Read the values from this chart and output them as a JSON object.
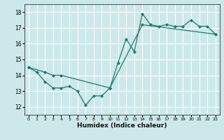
{
  "title": "",
  "xlabel": "Humidex (Indice chaleur)",
  "ylabel": "",
  "bg_color": "#cce8ea",
  "line_color": "#1a7a6e",
  "grid_color": "#ffffff",
  "xlim": [
    -0.5,
    23.5
  ],
  "ylim": [
    11.5,
    18.5
  ],
  "xticks": [
    0,
    1,
    2,
    3,
    4,
    5,
    6,
    7,
    8,
    9,
    10,
    11,
    12,
    13,
    14,
    15,
    16,
    17,
    18,
    19,
    20,
    21,
    22,
    23
  ],
  "yticks": [
    12,
    13,
    14,
    15,
    16,
    17,
    18
  ],
  "series1_x": [
    0,
    1,
    2,
    3,
    4,
    5,
    6,
    7,
    8,
    9,
    10,
    11,
    12,
    13,
    14,
    15,
    16,
    17,
    18,
    19,
    20,
    21,
    22,
    23
  ],
  "series1_y": [
    14.5,
    14.2,
    13.6,
    13.2,
    13.2,
    13.3,
    13.0,
    12.1,
    12.7,
    12.7,
    13.2,
    14.8,
    16.3,
    15.5,
    17.9,
    17.2,
    17.1,
    17.2,
    17.1,
    17.1,
    17.5,
    17.1,
    17.1,
    16.6
  ],
  "series2_x": [
    0,
    2,
    3,
    4,
    10,
    14,
    23
  ],
  "series2_y": [
    14.5,
    14.2,
    14.0,
    14.0,
    13.2,
    17.2,
    16.6
  ]
}
